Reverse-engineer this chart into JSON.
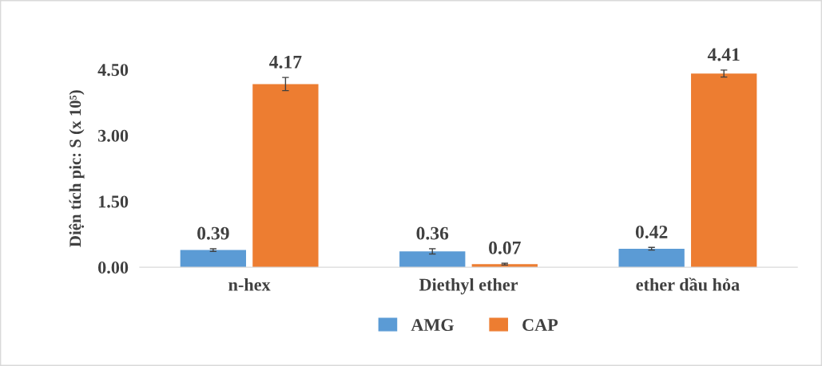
{
  "chart_data": {
    "type": "bar",
    "ylabel": "Diện tích pic: S (x 10⁵)",
    "categories": [
      "n-hex",
      "Diethyl ether",
      "ether dầu hỏa"
    ],
    "series": [
      {
        "name": "AMG",
        "color": "#5b9bd5",
        "values": [
          0.39,
          0.36,
          0.42
        ],
        "errors": [
          0.03,
          0.06,
          0.03
        ]
      },
      {
        "name": "CAP",
        "color": "#ed7d31",
        "values": [
          4.17,
          0.07,
          4.41
        ],
        "errors": [
          0.15,
          0.02,
          0.08
        ]
      }
    ],
    "ylim": [
      0,
      4.5
    ],
    "yticks": [
      {
        "value": 0,
        "label": "0.00"
      },
      {
        "value": 1.5,
        "label": "1.50"
      },
      {
        "value": 3,
        "label": "3.00"
      },
      {
        "value": 4.5,
        "label": "4.50"
      }
    ],
    "data_labels": true,
    "legend": "bottom",
    "grid": false
  }
}
